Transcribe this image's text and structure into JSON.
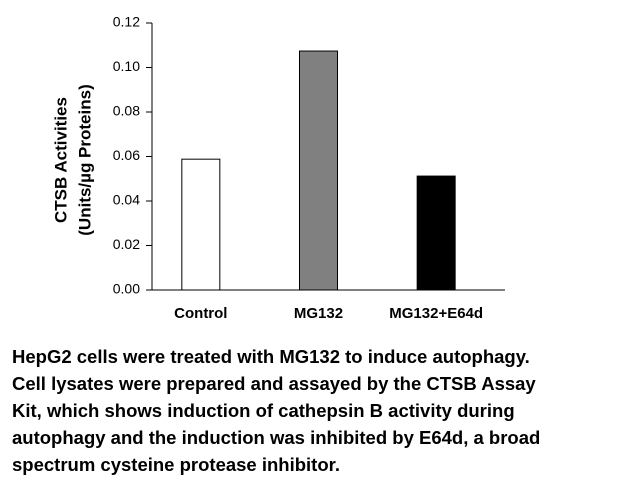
{
  "chart_data": {
    "type": "bar",
    "ylabel": [
      "CTSB Activities",
      "(Units/µg Proteins)"
    ],
    "categories": [
      "Control",
      "MG132",
      "MG132+E64d"
    ],
    "values": [
      0.0588,
      0.1074,
      0.0512
    ],
    "colors": [
      "#ffffff",
      "#808080",
      "#000000"
    ],
    "edgecolor": "#000000",
    "ylim": [
      0,
      0.12
    ],
    "yticks": [
      {
        "value": 0,
        "label": "0.00"
      },
      {
        "value": 0.02,
        "label": "0.02"
      },
      {
        "value": 0.04,
        "label": "0.04"
      },
      {
        "value": 0.06,
        "label": "0.06"
      },
      {
        "value": 0.08,
        "label": "0.08"
      },
      {
        "value": 0.1,
        "label": "0.10"
      },
      {
        "value": 0.12,
        "label": "0.12"
      }
    ],
    "grid": false
  },
  "caption": [
    "HepG2 cells were treated with MG132 to induce autophagy.",
    "Cell lysates were prepared and assayed by the CTSB Assay",
    "Kit, which shows induction of cathepsin B activity during",
    "autophagy and the induction was inhibited by E64d, a broad",
    "spectrum cysteine protease inhibitor."
  ]
}
